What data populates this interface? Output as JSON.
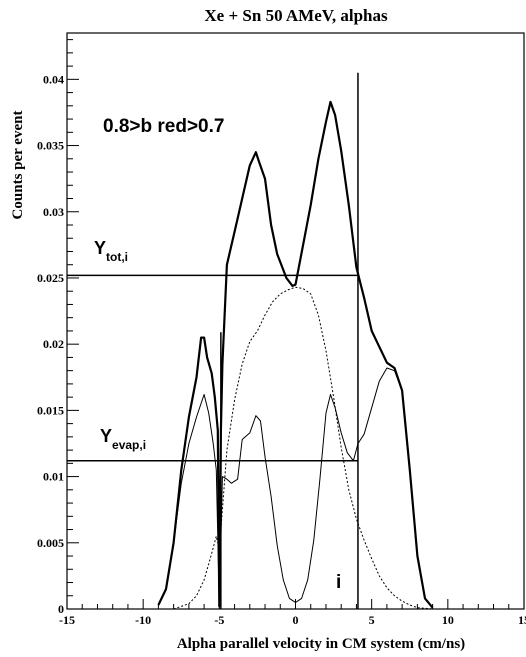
{
  "chart_data": {
    "type": "line",
    "title": "Xe + Sn 50 AMeV, alphas",
    "xlabel": "Alpha parallel velocity in CM system (cm/ns)",
    "ylabel": "Counts per event",
    "xlim": [
      -15,
      15
    ],
    "ylim": [
      0,
      0.0435
    ],
    "x_ticks": [
      -15,
      -10,
      -5,
      0,
      5,
      10,
      15
    ],
    "y_ticks": [
      0,
      0.005,
      0.01,
      0.015,
      0.02,
      0.025,
      0.03,
      0.035,
      0.04
    ],
    "x_tick_labels": [
      "-15",
      "-10",
      "-5",
      "0",
      "5",
      "10",
      "15"
    ],
    "y_tick_labels": [
      "0",
      "0.005",
      "0.01",
      "0.015",
      "0.02",
      "0.025",
      "0.03",
      "0.035",
      "0.04"
    ],
    "grid": false,
    "legend": "none",
    "annotations": {
      "cut_label": "0.8>b red>0.7",
      "ytot_main": "Y",
      "ytot_sub": "tot,i",
      "yevap_main": "Y",
      "yevap_sub": "evap,i",
      "bin_label": "i"
    },
    "reference_lines": {
      "y_tot": 0.0252,
      "y_evap": 0.0112,
      "x_bin": 4.1,
      "x_bin_top": 0.0405,
      "x_cut": -4.9,
      "x_cut_top": 0.0209
    },
    "series": [
      {
        "style": "thick",
        "x": [
          -9,
          -8.5,
          -8,
          -7.5,
          -7,
          -6.5,
          -6.2,
          -6,
          -5.8,
          -5.5,
          -5.3,
          -5.1,
          -5.0,
          -4.9,
          -4.8,
          -4.5,
          -4,
          -3.5,
          -3,
          -2.6,
          -2.4,
          -2,
          -1.6,
          -1.2,
          -1,
          -0.6,
          -0.2,
          0,
          0.5,
          1,
          1.5,
          2,
          2.3,
          2.6,
          3,
          3.5,
          4,
          4.5,
          5,
          5.5,
          6,
          6.5,
          7,
          7.5,
          8,
          8.5,
          9
        ],
        "y": [
          0.0003,
          0.0015,
          0.005,
          0.0105,
          0.0145,
          0.0175,
          0.0205,
          0.0205,
          0.019,
          0.0178,
          0.016,
          0.0135,
          0.0002,
          0.0135,
          0.0185,
          0.026,
          0.0285,
          0.031,
          0.0335,
          0.0345,
          0.0338,
          0.0325,
          0.029,
          0.0268,
          0.0262,
          0.025,
          0.0244,
          0.0245,
          0.0275,
          0.0305,
          0.034,
          0.0368,
          0.0383,
          0.0373,
          0.0346,
          0.0305,
          0.0258,
          0.0235,
          0.021,
          0.0198,
          0.0186,
          0.0182,
          0.0165,
          0.0105,
          0.004,
          0.0008,
          0.0001
        ]
      },
      {
        "style": "dashed",
        "x": [
          -8,
          -7,
          -6.5,
          -6,
          -5.5,
          -5.2,
          -5.0,
          -4.8,
          -4.5,
          -4,
          -3.5,
          -3,
          -2.5,
          -2,
          -1.5,
          -1,
          -0.5,
          0,
          0.5,
          1,
          1.5,
          2,
          2.5,
          3,
          3.5,
          4,
          4.5,
          5,
          5.5,
          6,
          6.5,
          7,
          7.5,
          8,
          8.5,
          9
        ],
        "y": [
          0,
          0.0004,
          0.001,
          0.0022,
          0.0042,
          0.0055,
          0.0045,
          0.0075,
          0.012,
          0.0158,
          0.0185,
          0.0202,
          0.021,
          0.0222,
          0.0232,
          0.0238,
          0.0241,
          0.0243,
          0.0242,
          0.0238,
          0.0222,
          0.0195,
          0.016,
          0.0122,
          0.009,
          0.0068,
          0.0052,
          0.0038,
          0.0025,
          0.0016,
          0.001,
          0.0006,
          0.0003,
          0.0001,
          5e-05,
          0
        ]
      },
      {
        "style": "thin",
        "x": [
          -9,
          -8.5,
          -8,
          -7.5,
          -7,
          -6.5,
          -6,
          -5.7,
          -5.4,
          -5.2,
          -5.0,
          -4.8,
          -4.5,
          -4.2,
          -3.8,
          -3.5,
          -3,
          -2.6,
          -2.3,
          -2,
          -1.6,
          -1.2,
          -0.8,
          -0.4,
          0,
          0.4,
          0.8,
          1.2,
          1.6,
          2,
          2.3,
          2.6,
          3,
          3.4,
          3.8,
          4.1,
          4.5,
          5,
          5.5,
          6,
          6.5,
          7,
          7.5,
          8,
          8.5,
          9
        ],
        "y": [
          0.0003,
          0.0015,
          0.005,
          0.0095,
          0.0125,
          0.0145,
          0.0162,
          0.0148,
          0.0125,
          0.0105,
          0.0002,
          0.01,
          0.0098,
          0.0095,
          0.0098,
          0.0128,
          0.0133,
          0.0146,
          0.0142,
          0.0115,
          0.0085,
          0.0048,
          0.0022,
          0.0008,
          0.0005,
          0.0008,
          0.0022,
          0.0052,
          0.0098,
          0.0148,
          0.0162,
          0.0152,
          0.0133,
          0.0118,
          0.0112,
          0.0125,
          0.0132,
          0.0152,
          0.0172,
          0.0182,
          0.018,
          0.0165,
          0.0105,
          0.004,
          0.0008,
          0.0001
        ]
      }
    ]
  }
}
